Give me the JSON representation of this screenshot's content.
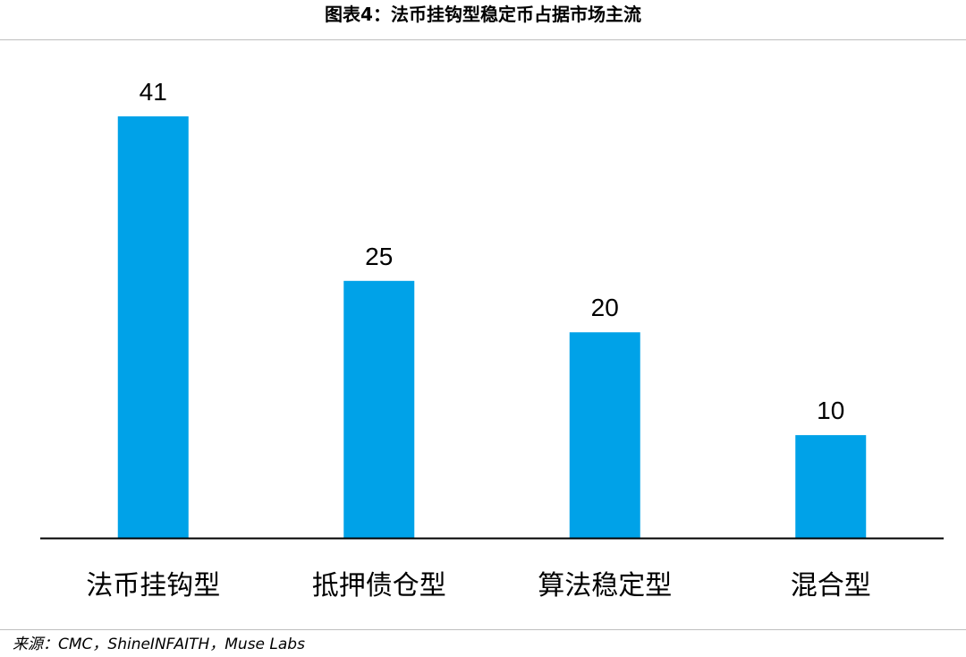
{
  "chart_data": {
    "type": "bar",
    "title": "图表4：法币挂钩型稳定币占据市场主流",
    "categories": [
      "法币挂钩型",
      "抵押债仓型",
      "算法稳定型",
      "混合型"
    ],
    "values": [
      41,
      25,
      20,
      10
    ],
    "xlabel": "",
    "ylabel": "",
    "ylim": [
      0,
      41
    ],
    "grid": false,
    "legend": "none",
    "data_labels": true,
    "bar_color": "#00a2e8",
    "axis_color": "#000000"
  },
  "source": "来源：CMC，ShineINFAITH，Muse Labs"
}
